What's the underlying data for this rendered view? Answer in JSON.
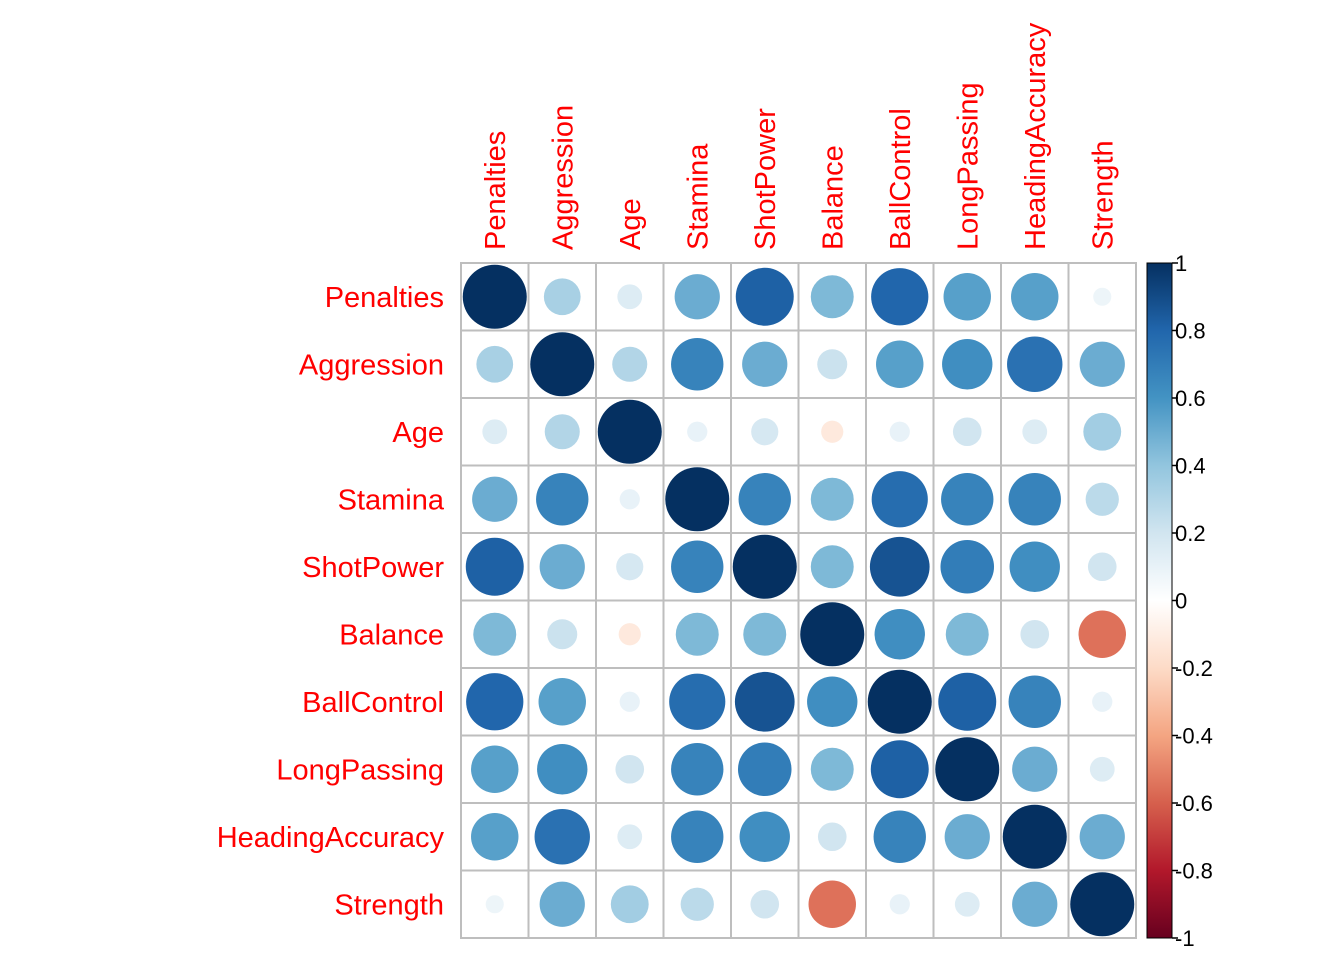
{
  "chart_data": {
    "type": "heatmap",
    "subtype": "correlation-circle-matrix",
    "variables": [
      "Penalties",
      "Aggression",
      "Age",
      "Stamina",
      "ShotPower",
      "Balance",
      "BallControl",
      "LongPassing",
      "HeadingAccuracy",
      "Strength"
    ],
    "matrix": [
      [
        1.0,
        0.33,
        0.15,
        0.5,
        0.82,
        0.45,
        0.8,
        0.55,
        0.55,
        0.08
      ],
      [
        0.33,
        1.0,
        0.3,
        0.67,
        0.5,
        0.22,
        0.55,
        0.62,
        0.75,
        0.5
      ],
      [
        0.15,
        0.3,
        1.0,
        0.1,
        0.18,
        -0.12,
        0.1,
        0.2,
        0.15,
        0.35
      ],
      [
        0.5,
        0.67,
        0.1,
        1.0,
        0.67,
        0.45,
        0.77,
        0.67,
        0.67,
        0.27
      ],
      [
        0.82,
        0.5,
        0.18,
        0.67,
        1.0,
        0.45,
        0.87,
        0.7,
        0.62,
        0.2
      ],
      [
        0.45,
        0.22,
        -0.12,
        0.45,
        0.45,
        1.0,
        0.62,
        0.45,
        0.2,
        -0.55
      ],
      [
        0.8,
        0.55,
        0.1,
        0.77,
        0.87,
        0.62,
        1.0,
        0.82,
        0.67,
        0.1
      ],
      [
        0.55,
        0.62,
        0.2,
        0.67,
        0.7,
        0.45,
        0.82,
        1.0,
        0.5,
        0.15
      ],
      [
        0.55,
        0.75,
        0.15,
        0.67,
        0.62,
        0.2,
        0.67,
        0.5,
        1.0,
        0.5
      ],
      [
        0.08,
        0.5,
        0.35,
        0.27,
        0.2,
        -0.55,
        0.1,
        0.15,
        0.5,
        1.0
      ]
    ],
    "colorbar": {
      "range": [
        -1,
        1
      ],
      "ticks": [
        "1",
        "0.8",
        "0.6",
        "0.4",
        "0.2",
        "0",
        "-0.2",
        "-0.4",
        "-0.6",
        "-0.8",
        "-1"
      ],
      "palette": [
        "#67001F",
        "#B2182B",
        "#D6604D",
        "#F4A582",
        "#FDDBC7",
        "#FFFFFF",
        "#D1E5F0",
        "#92C5DE",
        "#4393C3",
        "#2166AC",
        "#053061"
      ]
    },
    "label_color": "#FF0000",
    "grid_color": "#BEBEBE",
    "grid": true,
    "legend_position": "right"
  }
}
